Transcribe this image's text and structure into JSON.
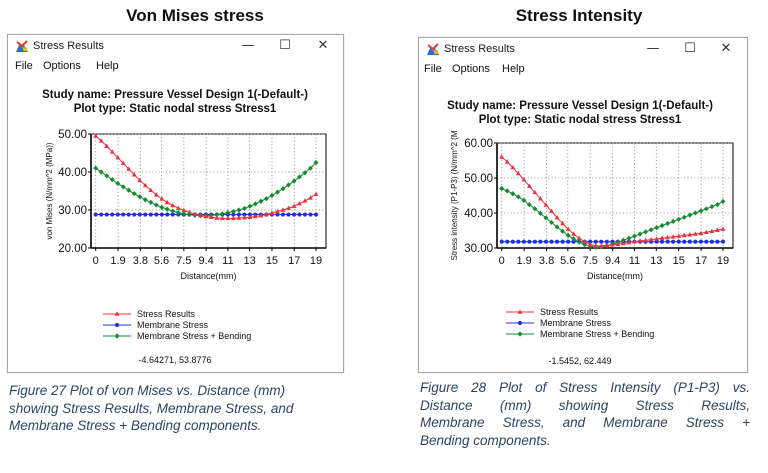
{
  "panels": [
    {
      "id": "vm",
      "heading": "Von Mises stress",
      "window": {
        "title": "Stress Results",
        "controls": {
          "minimize": "—",
          "maximize": "☐",
          "close": "✕"
        },
        "menu": [
          "File",
          "Options",
          "Help"
        ]
      },
      "chart_data": {
        "type": "line",
        "title": "Study name: Pressure Vessel Design 1(-Default-)",
        "subtitle": "Plot type: Static nodal stress Stress1",
        "xlabel": "Distance(mm)",
        "ylabel": "von Mises (N/mm^2 (MPa))",
        "x_tick_labels": [
          "0",
          "1.9",
          "3.8",
          "5.6",
          "7.5",
          "9.4",
          "11",
          "13",
          "15",
          "17",
          "19"
        ],
        "x_ticks": [
          0,
          1.9,
          3.8,
          5.6,
          7.5,
          9.4,
          11.25,
          13.1,
          15,
          16.9,
          18.75
        ],
        "xlim": [
          -0.4,
          19.6
        ],
        "y_ticks": [
          "20.00",
          "30.00",
          "40.00",
          "50.00"
        ],
        "ylim": [
          20,
          50
        ],
        "grid": true,
        "legend_position": "bottom",
        "readout": "-4.64271, 53.8776",
        "x": [
          0,
          0.47,
          0.94,
          1.41,
          1.88,
          2.34,
          2.81,
          3.28,
          3.75,
          4.22,
          4.69,
          5.16,
          5.63,
          6.09,
          6.56,
          7.03,
          7.5,
          7.97,
          8.44,
          8.91,
          9.38,
          9.84,
          10.31,
          10.78,
          11.25,
          11.72,
          12.19,
          12.66,
          13.13,
          13.59,
          14.06,
          14.53,
          15.0,
          15.47,
          15.94,
          16.41,
          16.88,
          17.34,
          17.81,
          18.28,
          18.75
        ],
        "series": [
          {
            "name": "Stress Results",
            "color": "#e8323c",
            "marker": "triangle",
            "values": [
              49.5,
              48.2,
              46.8,
              45.3,
              43.8,
              42.3,
              40.8,
              39.3,
              37.8,
              36.5,
              35.2,
              34.0,
              32.9,
              32.0,
              31.2,
              30.5,
              29.9,
              29.4,
              28.9,
              28.6,
              28.3,
              28.1,
              27.9,
              27.8,
              27.8,
              27.8,
              27.9,
              28.0,
              28.1,
              28.3,
              28.5,
              28.8,
              29.2,
              29.6,
              30.0,
              30.5,
              31.0,
              31.7,
              32.4,
              33.2,
              34.2
            ]
          },
          {
            "name": "Membrane Stress",
            "color": "#2030e0",
            "marker": "circle",
            "values": [
              28.8,
              28.8,
              28.8,
              28.8,
              28.8,
              28.8,
              28.8,
              28.8,
              28.8,
              28.8,
              28.8,
              28.8,
              28.8,
              28.8,
              28.8,
              28.8,
              28.8,
              28.8,
              28.8,
              28.8,
              28.8,
              28.8,
              28.8,
              28.8,
              28.8,
              28.8,
              28.8,
              28.8,
              28.8,
              28.8,
              28.8,
              28.8,
              28.8,
              28.8,
              28.8,
              28.8,
              28.8,
              28.8,
              28.8,
              28.8,
              28.8
            ]
          },
          {
            "name": "Membrane Stress + Bending",
            "color": "#138a30",
            "marker": "diamond",
            "values": [
              41.0,
              40.0,
              39.0,
              38.0,
              37.0,
              36.1,
              35.2,
              34.3,
              33.5,
              32.7,
              32.0,
              31.3,
              30.7,
              30.2,
              29.7,
              29.3,
              29.0,
              28.8,
              28.6,
              28.5,
              28.5,
              28.6,
              28.8,
              29.0,
              29.3,
              29.6,
              30.0,
              30.4,
              31.0,
              31.6,
              32.3,
              33.0,
              33.8,
              34.7,
              35.6,
              36.6,
              37.6,
              38.7,
              39.8,
              41.0,
              42.5
            ]
          }
        ]
      },
      "caption_lines": [
        "Figure 27 Plot of von Mises vs. Distance (mm)",
        "showing Stress Results, Membrane Stress, and",
        "Membrane Stress + Bending components."
      ]
    },
    {
      "id": "si",
      "heading": "Stress Intensity",
      "window": {
        "title": "Stress Results",
        "controls": {
          "minimize": "—",
          "maximize": "☐",
          "close": "✕"
        },
        "menu": [
          "File",
          "Options",
          "Help"
        ]
      },
      "chart_data": {
        "type": "line",
        "title": "Study name: Pressure Vessel Design 1(-Default-)",
        "subtitle": "Plot type: Static nodal stress Stress1",
        "xlabel": "Distance(mm)",
        "ylabel": "Stress intensity (P1-P3) (N/mm^2 (M",
        "x_tick_labels": [
          "0",
          "1.9",
          "3.8",
          "5.6",
          "7.5",
          "9.4",
          "11",
          "13",
          "15",
          "17",
          "19"
        ],
        "x_ticks": [
          0,
          1.9,
          3.8,
          5.6,
          7.5,
          9.4,
          11.25,
          13.1,
          15,
          16.9,
          18.75
        ],
        "xlim": [
          -0.4,
          19.6
        ],
        "y_ticks": [
          "30.00",
          "40.00",
          "50.00",
          "60.00"
        ],
        "ylim": [
          30,
          60
        ],
        "grid": true,
        "legend_position": "bottom",
        "readout": "-1.5452, 62.449",
        "x": [
          0,
          0.47,
          0.94,
          1.41,
          1.88,
          2.34,
          2.81,
          3.28,
          3.75,
          4.22,
          4.69,
          5.16,
          5.63,
          6.09,
          6.56,
          7.03,
          7.5,
          7.97,
          8.44,
          8.91,
          9.38,
          9.84,
          10.31,
          10.78,
          11.25,
          11.72,
          12.19,
          12.66,
          13.13,
          13.59,
          14.06,
          14.53,
          15.0,
          15.47,
          15.94,
          16.41,
          16.88,
          17.34,
          17.81,
          18.28,
          18.75
        ],
        "series": [
          {
            "name": "Stress Results",
            "color": "#e8323c",
            "marker": "triangle",
            "values": [
              56.0,
              54.6,
              53.0,
              51.3,
              49.5,
              47.7,
              45.9,
              44.1,
              42.3,
              40.5,
              38.7,
              37.0,
              35.4,
              34.0,
              32.8,
              31.8,
              31.0,
              30.6,
              30.6,
              30.7,
              30.9,
              31.1,
              31.3,
              31.6,
              31.8,
              32.0,
              32.2,
              32.4,
              32.6,
              32.8,
              33.0,
              33.2,
              33.4,
              33.6,
              33.8,
              34.0,
              34.2,
              34.5,
              34.8,
              35.1,
              35.4
            ]
          },
          {
            "name": "Membrane Stress",
            "color": "#2030e0",
            "marker": "circle",
            "values": [
              31.8,
              31.8,
              31.8,
              31.8,
              31.8,
              31.8,
              31.8,
              31.8,
              31.8,
              31.8,
              31.8,
              31.8,
              31.8,
              31.8,
              31.8,
              31.8,
              31.8,
              31.8,
              31.8,
              31.8,
              31.8,
              31.8,
              31.8,
              31.8,
              31.8,
              31.8,
              31.8,
              31.8,
              31.8,
              31.8,
              31.8,
              31.8,
              31.8,
              31.8,
              31.8,
              31.8,
              31.8,
              31.8,
              31.8,
              31.8,
              31.8
            ]
          },
          {
            "name": "Membrane Stress + Bending",
            "color": "#138a30",
            "marker": "diamond",
            "values": [
              47.0,
              46.3,
              45.5,
              44.6,
              43.6,
              42.4,
              41.2,
              39.9,
              38.6,
              37.3,
              36.0,
              34.8,
              33.6,
              32.6,
              31.7,
              31.0,
              30.5,
              30.2,
              30.3,
              30.6,
              31.1,
              31.6,
              32.2,
              32.8,
              33.4,
              34.0,
              34.6,
              35.2,
              35.8,
              36.4,
              37.0,
              37.6,
              38.2,
              38.8,
              39.4,
              40.0,
              40.6,
              41.2,
              41.8,
              42.4,
              43.3
            ]
          }
        ]
      },
      "caption_lines": [
        "Figure 28 Plot of Stress Intensity (P1-P3) vs.",
        "Distance (mm) showing Stress Results,",
        "Membrane Stress, and Membrane Stress +",
        "Bending components."
      ]
    }
  ]
}
